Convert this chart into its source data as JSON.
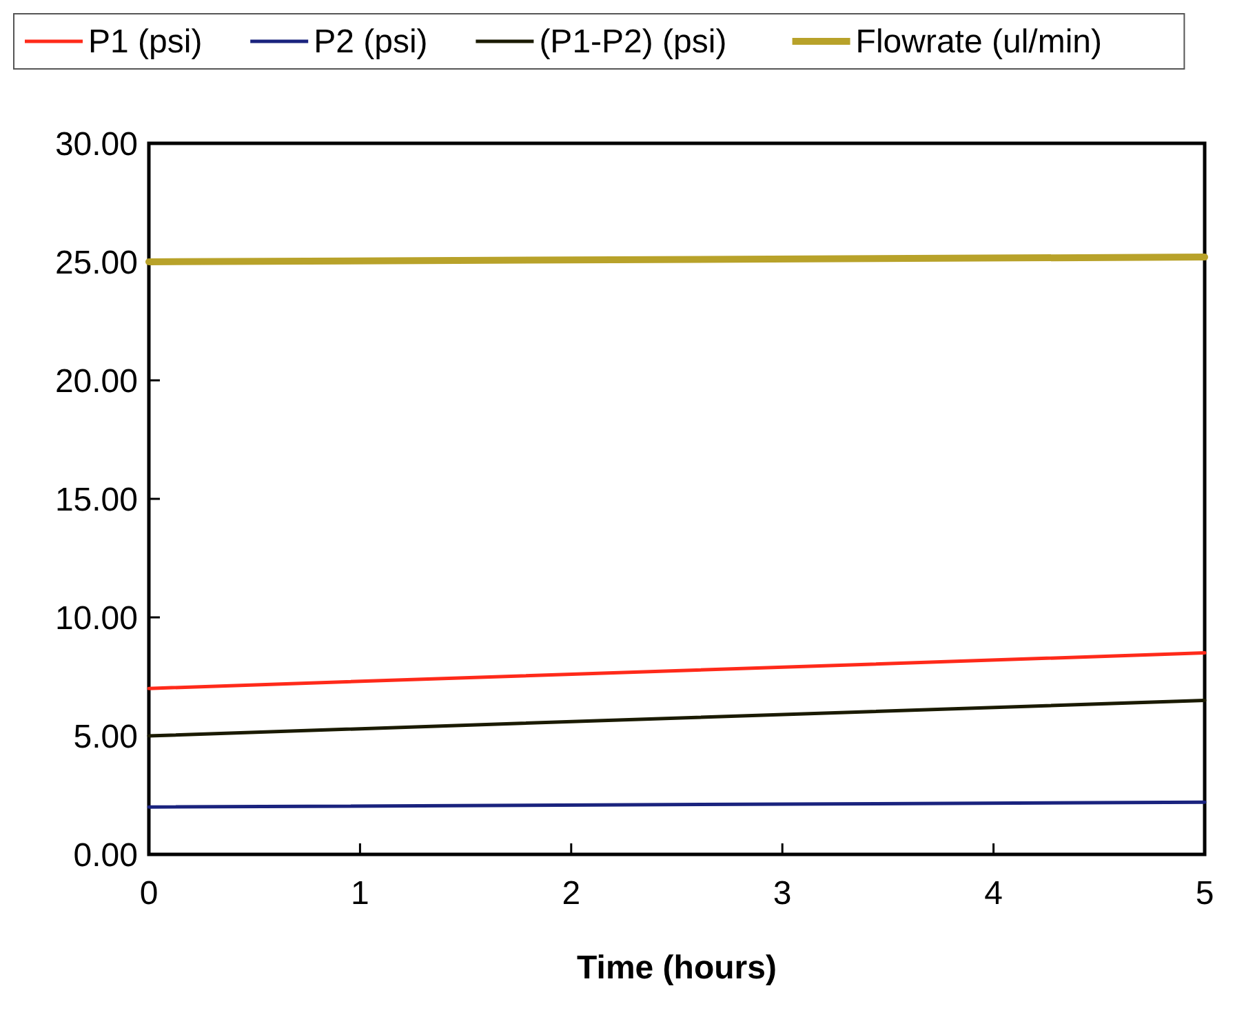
{
  "chart_data": {
    "type": "line",
    "xlabel": "Time (hours)",
    "x": [
      0,
      5
    ],
    "series": [
      {
        "name": "P1 (psi)",
        "color": "#ff2a1a",
        "values": [
          7.0,
          8.5
        ]
      },
      {
        "name": "P2 (psi)",
        "color": "#1a237e",
        "values": [
          2.0,
          2.2
        ]
      },
      {
        "name": "(P1-P2) (psi)",
        "color": "#1a1a00",
        "values": [
          5.0,
          6.5
        ]
      },
      {
        "name": "Flowrate (ul/min)",
        "color": "#b8a22a",
        "values": [
          25.0,
          25.2
        ]
      }
    ],
    "xlim": [
      0,
      5
    ],
    "xticks": [
      0,
      1,
      2,
      3,
      4,
      5
    ],
    "ylim": [
      0,
      30
    ],
    "yticks": [
      {
        "value": 0,
        "label": "0.00"
      },
      {
        "value": 5,
        "label": "5.00"
      },
      {
        "value": 10,
        "label": "10.00"
      },
      {
        "value": 15,
        "label": "15.00"
      },
      {
        "value": 20,
        "label": "20.00"
      },
      {
        "value": 25,
        "label": "25.00"
      },
      {
        "value": 30,
        "label": "30.00"
      }
    ],
    "grid": false,
    "legend": "top",
    "marker": "none",
    "line_style": "solid"
  }
}
